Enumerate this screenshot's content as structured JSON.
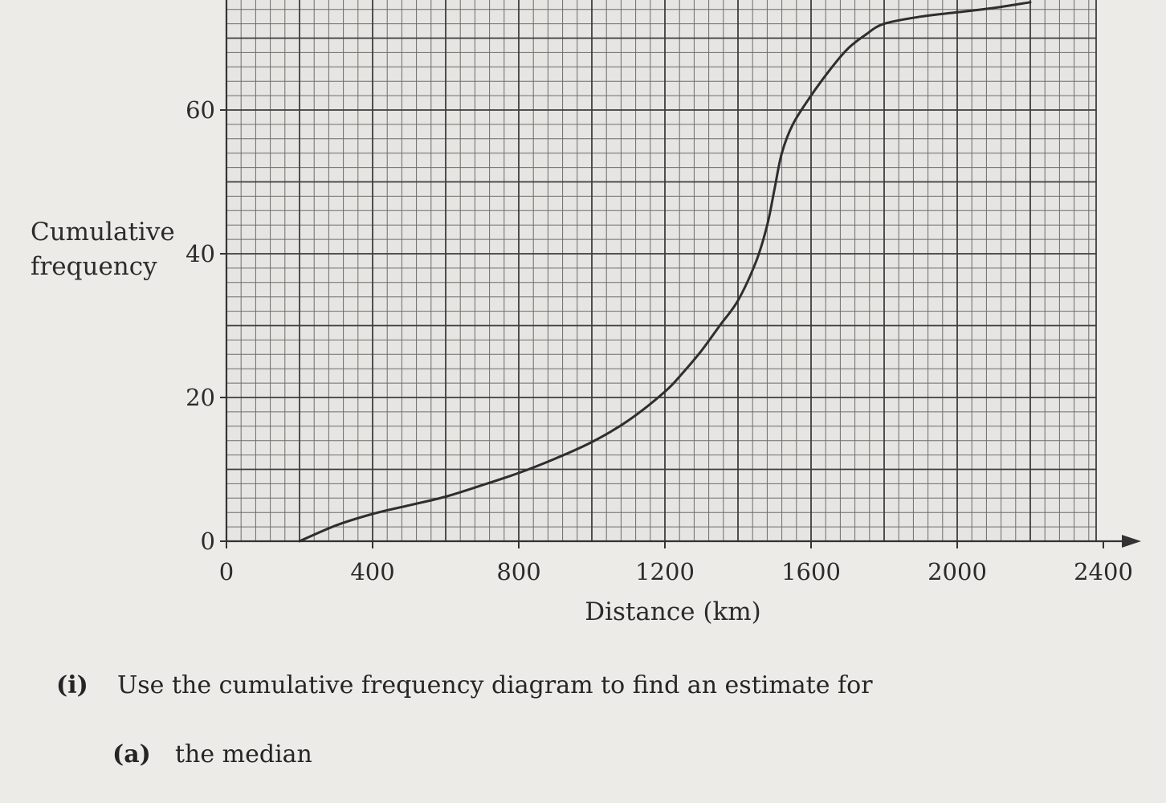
{
  "chart_data": {
    "type": "line",
    "xlabel": "Distance (km)",
    "ylabel_lines": [
      "Cumulative",
      "frequency"
    ],
    "x_ticks": [
      0,
      400,
      800,
      1200,
      1600,
      2000,
      2400
    ],
    "y_ticks": [
      0,
      20,
      40,
      60
    ],
    "xlim": [
      0,
      2400
    ],
    "ylim": [
      0,
      75
    ],
    "grid": true,
    "grid_minor_x": 40,
    "grid_minor_y": 2,
    "series": [
      {
        "x": [
          200,
          300,
          400,
          500,
          600,
          700,
          800,
          900,
          1000,
          1100,
          1200,
          1250,
          1300,
          1350,
          1400,
          1450,
          1480,
          1500,
          1520,
          1550,
          1600,
          1650,
          1700,
          1750,
          1800,
          1900,
          2000,
          2100,
          2200
        ],
        "y": [
          0,
          2.2,
          3.8,
          5,
          6.2,
          7.8,
          9.5,
          11.5,
          13.8,
          16.8,
          20.8,
          23.5,
          26.5,
          30,
          33.5,
          39,
          44,
          49,
          54,
          58,
          62,
          65.5,
          68.5,
          70.5,
          72,
          73,
          73.6,
          74.2,
          75
        ]
      }
    ]
  },
  "questions": {
    "part_i": {
      "label": "(i)",
      "text": "Use the cumulative frequency diagram to find an estimate for"
    },
    "part_a": {
      "label": "(a)",
      "text": "the median"
    }
  }
}
